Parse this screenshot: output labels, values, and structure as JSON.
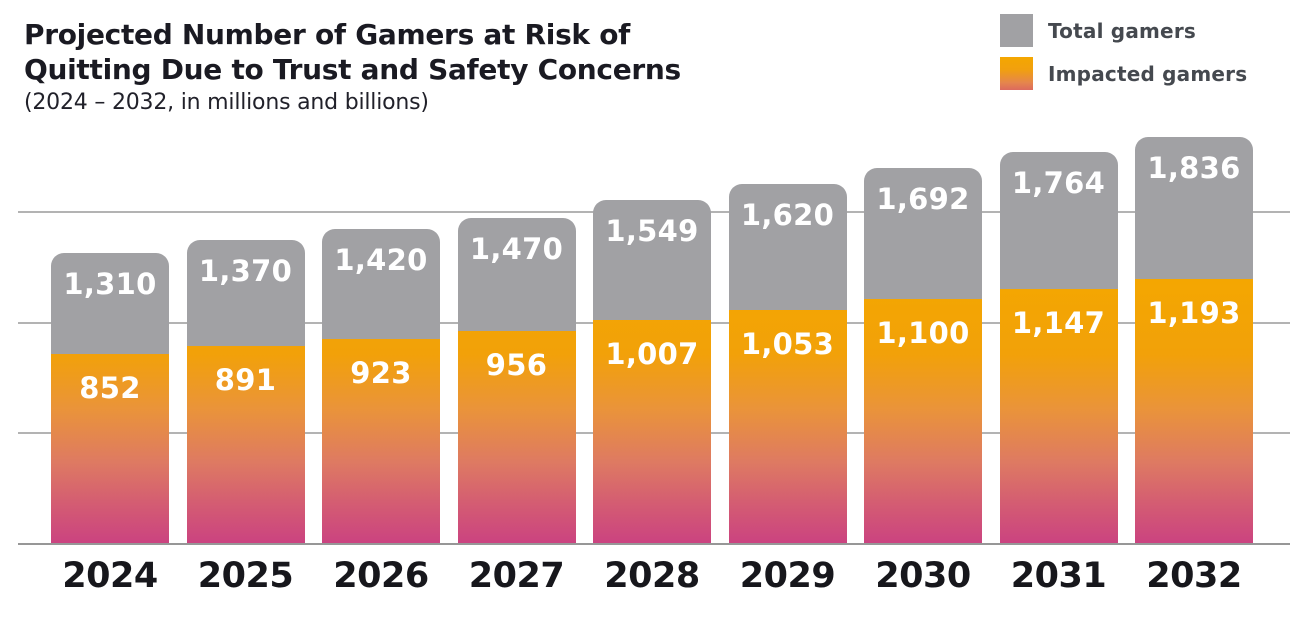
{
  "header": {
    "title_line1": "Projected Number of Gamers at Risk of",
    "title_line2": "Quitting Due to Trust and Safety Concerns",
    "subtitle": "(2024 – 2032, in millions and billions)"
  },
  "legend": {
    "position": "top-right",
    "items": [
      {
        "label": "Total gamers",
        "swatch": "gray"
      },
      {
        "label": "Impacted gamers",
        "swatch": "orange-pink-gradient"
      }
    ]
  },
  "colors": {
    "total_bar": "#A1A1A4",
    "impacted_bar_top": "#F4A700",
    "impacted_bar_bottom": "#CB4380",
    "title_text": "#1A1A22",
    "year_label_text": "#17171C",
    "legend_text": "#45494F",
    "value_label_text": "#FFFFFF",
    "gridline": "#B3B3B3"
  },
  "chart_data": {
    "type": "bar",
    "variant": "overlaid-stacked-columns",
    "title": "Projected Number of Gamers at Risk of Quitting Due to Trust and Safety Concerns",
    "subtitle": "(2024 – 2032, in millions and billions)",
    "categories": [
      "2024",
      "2025",
      "2026",
      "2027",
      "2028",
      "2029",
      "2030",
      "2031",
      "2032"
    ],
    "series": [
      {
        "name": "Total gamers",
        "values": [
          1310,
          1370,
          1420,
          1470,
          1549,
          1620,
          1692,
          1764,
          1836
        ],
        "labels": [
          "1,310",
          "1,370",
          "1,420",
          "1,470",
          "1,549",
          "1,620",
          "1,692",
          "1,764",
          "1,836"
        ]
      },
      {
        "name": "Impacted gamers",
        "values": [
          852,
          891,
          923,
          956,
          1007,
          1053,
          1100,
          1147,
          1193
        ],
        "labels": [
          "852",
          "891",
          "923",
          "956",
          "1,007",
          "1,053",
          "1,100",
          "1,147",
          "1,193"
        ]
      }
    ],
    "xlabel": "",
    "ylabel": "",
    "ylim": [
      0,
      2000
    ],
    "y_gridlines": [
      500,
      1000,
      1500
    ],
    "y_axis_tick_labels_visible": false,
    "grid": true,
    "legend_position": "top-right",
    "value_labels": "inside-top-of-segment"
  }
}
